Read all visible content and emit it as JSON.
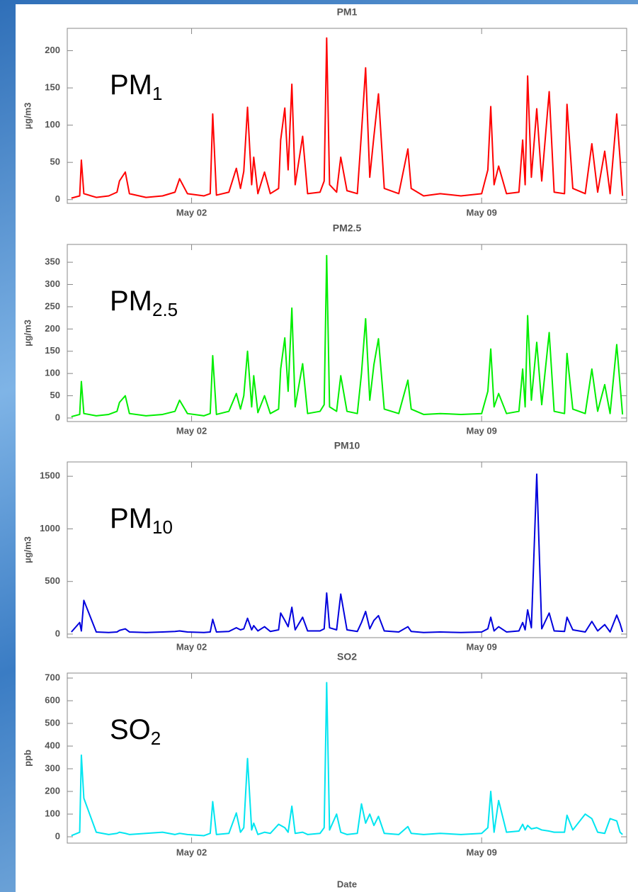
{
  "chart_data": [
    {
      "type": "line",
      "title": "PM1",
      "ylabel": "µg/m3",
      "annotation": {
        "text": "PM",
        "sub": "1"
      },
      "color": "#ff0000",
      "x": [
        -0.9,
        -0.7,
        -0.66,
        -0.6,
        -0.3,
        0.0,
        0.2,
        0.26,
        0.4,
        0.5,
        0.9,
        1.3,
        1.6,
        1.71,
        1.9,
        2.3,
        2.45,
        2.51,
        2.6,
        2.9,
        3.08,
        3.18,
        3.26,
        3.35,
        3.45,
        3.5,
        3.6,
        3.76,
        3.9,
        4.1,
        4.15,
        4.25,
        4.33,
        4.42,
        4.5,
        4.68,
        4.8,
        5.1,
        5.2,
        5.26,
        5.33,
        5.5,
        5.6,
        5.75,
        6.0,
        6.1,
        6.2,
        6.3,
        6.4,
        6.51,
        6.65,
        7.0,
        7.22,
        7.3,
        7.6,
        8.0,
        8.5,
        9.0,
        9.15,
        9.22,
        9.3,
        9.41,
        9.6,
        9.9,
        9.99,
        10.05,
        10.11,
        10.2,
        10.33,
        10.45,
        10.63,
        10.75,
        11.0,
        11.06,
        11.2,
        11.5,
        11.66,
        11.8,
        11.97,
        12.1,
        12.26,
        12.34,
        12.4
      ],
      "values": [
        2,
        5,
        53,
        8,
        3,
        5,
        10,
        25,
        37,
        8,
        3,
        5,
        10,
        28,
        8,
        5,
        8,
        115,
        6,
        10,
        42,
        15,
        38,
        124,
        20,
        57,
        8,
        37,
        8,
        15,
        80,
        123,
        40,
        155,
        20,
        85,
        8,
        10,
        25,
        217,
        20,
        10,
        57,
        12,
        8,
        90,
        177,
        30,
        85,
        142,
        15,
        8,
        68,
        15,
        5,
        8,
        5,
        8,
        40,
        125,
        20,
        45,
        8,
        10,
        80,
        20,
        166,
        30,
        122,
        25,
        145,
        10,
        8,
        128,
        15,
        8,
        75,
        10,
        65,
        8,
        115,
        55,
        5
      ],
      "xlim": [
        -1.0,
        12.5
      ],
      "xticks": [
        {
          "value": 2,
          "label": "May 02"
        },
        {
          "value": 9,
          "label": "May 09"
        }
      ],
      "ylim": [
        -5,
        230
      ],
      "yticks": [
        0,
        50,
        100,
        150,
        200
      ]
    },
    {
      "type": "line",
      "title": "PM2.5",
      "ylabel": "µg/m3",
      "annotation": {
        "text": "PM",
        "sub": "2.5"
      },
      "color": "#00ee00",
      "x": [
        -0.9,
        -0.7,
        -0.66,
        -0.6,
        -0.3,
        0.0,
        0.2,
        0.26,
        0.4,
        0.5,
        0.9,
        1.3,
        1.6,
        1.71,
        1.9,
        2.3,
        2.45,
        2.51,
        2.6,
        2.9,
        3.08,
        3.18,
        3.26,
        3.35,
        3.45,
        3.5,
        3.6,
        3.76,
        3.9,
        4.1,
        4.15,
        4.25,
        4.33,
        4.42,
        4.5,
        4.68,
        4.8,
        5.1,
        5.2,
        5.26,
        5.33,
        5.5,
        5.6,
        5.75,
        6.0,
        6.1,
        6.2,
        6.3,
        6.4,
        6.51,
        6.65,
        7.0,
        7.22,
        7.3,
        7.6,
        8.0,
        8.5,
        9.0,
        9.15,
        9.22,
        9.3,
        9.41,
        9.6,
        9.9,
        9.99,
        10.05,
        10.11,
        10.2,
        10.33,
        10.45,
        10.63,
        10.75,
        11.0,
        11.06,
        11.2,
        11.5,
        11.66,
        11.8,
        11.97,
        12.1,
        12.26,
        12.34,
        12.4
      ],
      "values": [
        3,
        8,
        82,
        10,
        5,
        8,
        15,
        35,
        50,
        10,
        5,
        8,
        15,
        40,
        10,
        5,
        10,
        140,
        8,
        15,
        55,
        20,
        50,
        150,
        25,
        95,
        12,
        50,
        10,
        20,
        110,
        180,
        60,
        247,
        25,
        122,
        10,
        15,
        30,
        365,
        25,
        15,
        95,
        15,
        10,
        100,
        223,
        40,
        120,
        178,
        20,
        10,
        85,
        20,
        8,
        10,
        8,
        10,
        60,
        155,
        25,
        55,
        10,
        15,
        110,
        25,
        230,
        40,
        170,
        30,
        192,
        15,
        10,
        145,
        20,
        10,
        110,
        15,
        75,
        10,
        165,
        75,
        8
      ],
      "xlim": [
        -1.0,
        12.5
      ],
      "xticks": [
        {
          "value": 2,
          "label": "May 02"
        },
        {
          "value": 9,
          "label": "May 09"
        }
      ],
      "ylim": [
        -8,
        390
      ],
      "yticks": [
        0,
        50,
        100,
        150,
        200,
        250,
        300,
        350
      ]
    },
    {
      "type": "line",
      "title": "PM10",
      "ylabel": "µg/m3",
      "annotation": {
        "text": "PM",
        "sub": "10"
      },
      "color": "#0000dd",
      "x": [
        -0.9,
        -0.7,
        -0.66,
        -0.6,
        -0.3,
        0.0,
        0.2,
        0.26,
        0.4,
        0.5,
        0.9,
        1.3,
        1.6,
        1.71,
        1.9,
        2.3,
        2.45,
        2.51,
        2.6,
        2.9,
        3.08,
        3.18,
        3.26,
        3.35,
        3.45,
        3.5,
        3.6,
        3.76,
        3.9,
        4.1,
        4.15,
        4.25,
        4.33,
        4.42,
        4.5,
        4.68,
        4.8,
        5.1,
        5.2,
        5.26,
        5.33,
        5.5,
        5.6,
        5.75,
        6.0,
        6.1,
        6.2,
        6.3,
        6.4,
        6.51,
        6.65,
        7.0,
        7.22,
        7.3,
        7.6,
        8.0,
        8.5,
        9.0,
        9.15,
        9.22,
        9.3,
        9.41,
        9.6,
        9.9,
        9.99,
        10.05,
        10.11,
        10.2,
        10.33,
        10.45,
        10.63,
        10.75,
        11.0,
        11.06,
        11.2,
        11.5,
        11.66,
        11.8,
        11.97,
        12.1,
        12.26,
        12.34,
        12.4
      ],
      "values": [
        20,
        110,
        30,
        320,
        20,
        15,
        20,
        35,
        50,
        20,
        15,
        20,
        25,
        30,
        20,
        15,
        20,
        140,
        20,
        25,
        60,
        40,
        50,
        150,
        40,
        80,
        30,
        70,
        25,
        40,
        200,
        130,
        70,
        255,
        40,
        160,
        30,
        30,
        50,
        390,
        60,
        40,
        380,
        40,
        25,
        110,
        215,
        50,
        130,
        175,
        30,
        20,
        70,
        25,
        15,
        20,
        15,
        20,
        50,
        160,
        30,
        70,
        20,
        30,
        110,
        40,
        230,
        60,
        1520,
        50,
        200,
        30,
        25,
        160,
        40,
        20,
        120,
        30,
        90,
        20,
        180,
        100,
        20
      ],
      "xlim": [
        -1.0,
        12.5
      ],
      "xticks": [
        {
          "value": 2,
          "label": "May 02"
        },
        {
          "value": 9,
          "label": "May 09"
        }
      ],
      "ylim": [
        -34,
        1636
      ],
      "yticks": [
        0,
        500,
        1000,
        1500
      ]
    },
    {
      "type": "line",
      "title": "SO2",
      "ylabel": "ppb",
      "xlabel": "Date",
      "annotation": {
        "text": "SO",
        "sub": "2"
      },
      "color": "#00e5f0",
      "x": [
        -0.9,
        -0.7,
        -0.66,
        -0.6,
        -0.3,
        0.0,
        0.2,
        0.26,
        0.4,
        0.5,
        0.9,
        1.3,
        1.6,
        1.71,
        1.9,
        2.3,
        2.45,
        2.51,
        2.6,
        2.9,
        3.08,
        3.18,
        3.26,
        3.35,
        3.45,
        3.5,
        3.6,
        3.76,
        3.9,
        4.1,
        4.15,
        4.25,
        4.33,
        4.42,
        4.5,
        4.68,
        4.8,
        5.1,
        5.2,
        5.26,
        5.33,
        5.5,
        5.6,
        5.75,
        6.0,
        6.1,
        6.2,
        6.3,
        6.4,
        6.51,
        6.65,
        7.0,
        7.22,
        7.3,
        7.6,
        8.0,
        8.5,
        9.0,
        9.15,
        9.22,
        9.3,
        9.41,
        9.6,
        9.9,
        9.99,
        10.05,
        10.11,
        10.2,
        10.33,
        10.45,
        10.63,
        10.75,
        11.0,
        11.06,
        11.2,
        11.5,
        11.66,
        11.8,
        11.97,
        12.1,
        12.26,
        12.34,
        12.4
      ],
      "values": [
        5,
        20,
        360,
        170,
        20,
        10,
        15,
        20,
        15,
        10,
        15,
        20,
        10,
        15,
        10,
        5,
        15,
        155,
        10,
        15,
        105,
        20,
        40,
        345,
        30,
        60,
        10,
        20,
        15,
        55,
        50,
        40,
        20,
        135,
        15,
        20,
        10,
        15,
        40,
        680,
        30,
        100,
        20,
        10,
        15,
        145,
        60,
        100,
        50,
        90,
        15,
        10,
        45,
        15,
        10,
        15,
        10,
        15,
        40,
        200,
        20,
        160,
        20,
        25,
        55,
        30,
        50,
        35,
        40,
        30,
        25,
        20,
        20,
        95,
        30,
        100,
        80,
        20,
        15,
        80,
        70,
        20,
        10
      ],
      "xlim": [
        -1.0,
        12.5
      ],
      "xticks": [
        {
          "value": 2,
          "label": "May 02"
        },
        {
          "value": 9,
          "label": "May 09"
        }
      ],
      "ylim": [
        -28,
        722
      ],
      "yticks": [
        0,
        100,
        200,
        300,
        400,
        500,
        600,
        700
      ]
    }
  ]
}
